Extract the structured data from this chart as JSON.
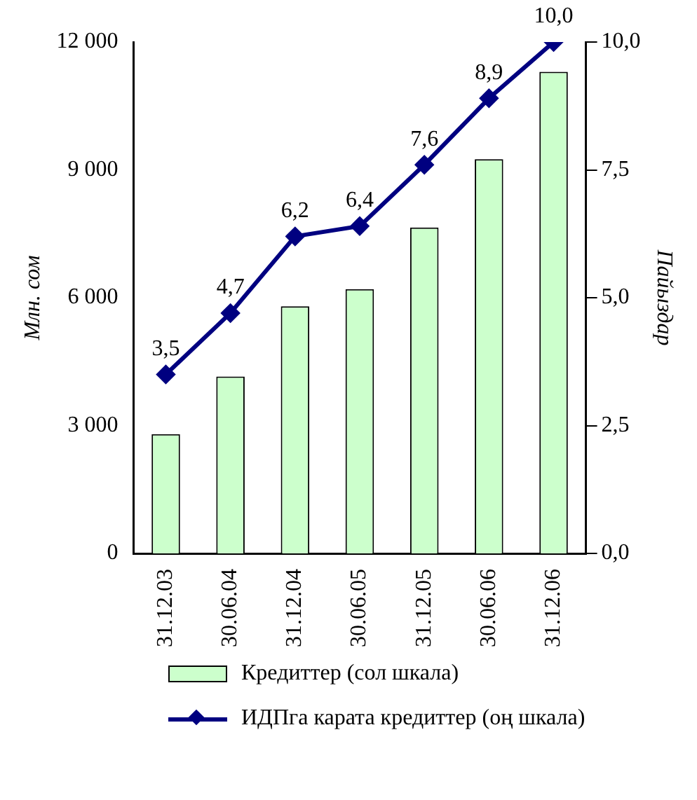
{
  "chart_data": {
    "type": "bar",
    "ylabel": "Млн. сом",
    "y2label": "Пайыздар",
    "categories": [
      "31.12.03",
      "30.06.04",
      "31.12.04",
      "30.06.05",
      "31.12.05",
      "30.06.06",
      "31.12.06"
    ],
    "series": [
      {
        "name": "Кредиттер (сол шкала)",
        "color": "#ccffcc",
        "values": [
          2800,
          4150,
          5800,
          6200,
          7650,
          9250,
          11300
        ]
      },
      {
        "name": "ИДПга карата кредиттер (оң шкала)",
        "type": "line",
        "axis": "y2",
        "color": "#000080",
        "marker": "diamond",
        "values": [
          3.5,
          4.7,
          6.2,
          6.4,
          7.6,
          8.9,
          10.0
        ],
        "value_labels": [
          "3,5",
          "4,7",
          "6,2",
          "6,4",
          "7,6",
          "8,9",
          "10,0"
        ]
      }
    ],
    "ylim": [
      0,
      12000
    ],
    "yticks": [
      {
        "value": 0,
        "label": "0"
      },
      {
        "value": 3000,
        "label": "3 000"
      },
      {
        "value": 6000,
        "label": "6 000"
      },
      {
        "value": 9000,
        "label": "9 000"
      },
      {
        "value": 12000,
        "label": "12 000"
      }
    ],
    "y2lim": [
      0,
      10
    ],
    "y2ticks": [
      {
        "value": 0,
        "label": "0,0"
      },
      {
        "value": 2.5,
        "label": "2,5"
      },
      {
        "value": 5,
        "label": "5,0"
      },
      {
        "value": 7.5,
        "label": "7,5"
      },
      {
        "value": 10,
        "label": "10,0"
      }
    ],
    "grid": false,
    "legend": "bottom"
  }
}
